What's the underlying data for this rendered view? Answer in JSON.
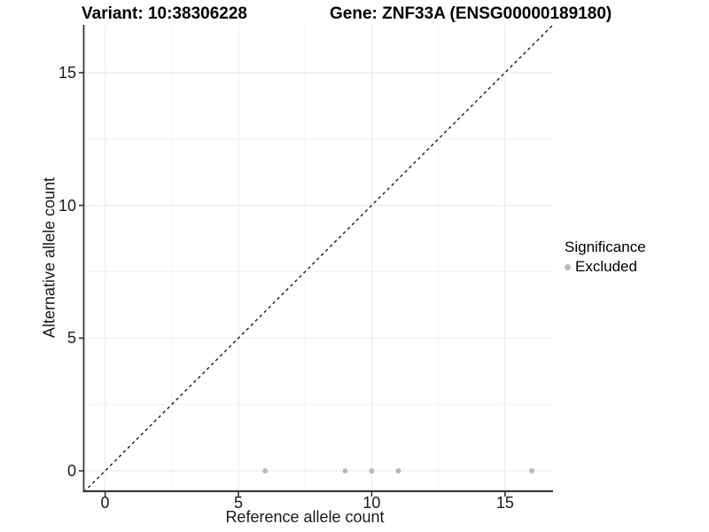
{
  "figure": {
    "title_variant": "Variant: 10:38306228",
    "title_gene": "Gene: ZNF33A (ENSG00000189180)"
  },
  "chart_data": {
    "type": "scatter",
    "title": "Variant: 10:38306228  /  Gene: ZNF33A (ENSG00000189180)",
    "xlabel": "Reference allele count",
    "ylabel": "Alternative allele count",
    "xlim": [
      -0.8,
      16.8
    ],
    "ylim": [
      -0.8,
      16.8
    ],
    "x_ticks": [
      0,
      5,
      10,
      15
    ],
    "y_ticks": [
      0,
      5,
      10,
      15
    ],
    "x_minor_gridlines": [
      2.5,
      7.5,
      12.5
    ],
    "y_minor_gridlines": [
      2.5,
      7.5,
      12.5
    ],
    "grid": "major+minor",
    "series": [
      {
        "name": "Excluded",
        "color": "#b9b9b9",
        "marker": "circle",
        "points": [
          {
            "x": 6,
            "y": 0
          },
          {
            "x": 9,
            "y": 0
          },
          {
            "x": 10,
            "y": 0
          },
          {
            "x": 11,
            "y": 0
          },
          {
            "x": 16,
            "y": 0
          }
        ]
      }
    ],
    "reference_line": {
      "type": "identity",
      "slope": 1,
      "intercept": 0,
      "style": "dashed",
      "color": "#1a1a1a"
    },
    "legend_position": "right"
  },
  "legend": {
    "title": "Significance",
    "items": [
      {
        "label": "Excluded",
        "color": "#b9b9b9",
        "marker": "circle"
      }
    ]
  },
  "colors": {
    "background": "#ffffff",
    "grid_major": "#e8e8e8",
    "grid_minor": "#f1f1f1",
    "axis_line": "#3a3a3a",
    "tick_mark": "#333333",
    "point": "#b9b9b9",
    "text": "#000000"
  }
}
